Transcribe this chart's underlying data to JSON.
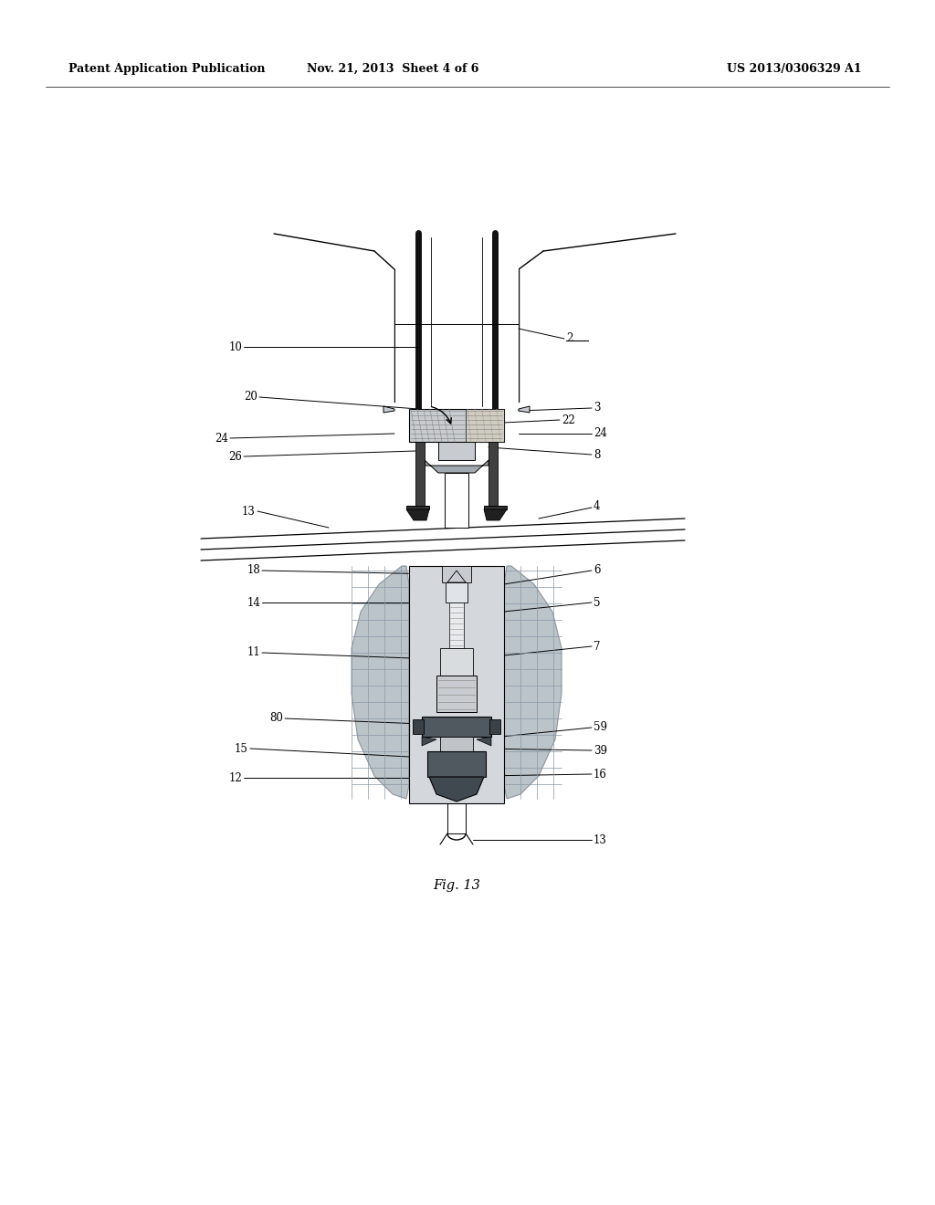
{
  "title_left": "Patent Application Publication",
  "title_mid": "Nov. 21, 2013  Sheet 4 of 6",
  "title_right": "US 2013/0306329 A1",
  "fig_label": "Fig. 13",
  "background_color": "#ffffff",
  "lc": "#000000",
  "gray_light": "#c8ccd0",
  "gray_med": "#a0a8b0",
  "gray_dark": "#606870",
  "gray_darker": "#404850",
  "gray_body": "#b0bac0",
  "warm_gray": "#b0a898"
}
